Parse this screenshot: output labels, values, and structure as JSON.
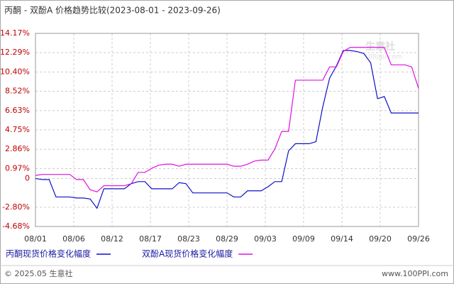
{
  "chart_data": {
    "type": "line",
    "title": "丙酮 - 双酚A 价格趋势比较(2023-08-01 - 2023-09-26)",
    "xticks": [
      "08/01",
      "08/06",
      "08/12",
      "08/17",
      "08/23",
      "08/29",
      "09/03",
      "09/09",
      "09/14",
      "09/20",
      "09/26"
    ],
    "ylim": [
      -4.68,
      14.17
    ],
    "yticks": [
      {
        "value": 14.17,
        "label": "14.17%"
      },
      {
        "value": 12.29,
        "label": "12.29%"
      },
      {
        "value": 10.4,
        "label": "10.40%"
      },
      {
        "value": 8.52,
        "label": "8.52%"
      },
      {
        "value": 6.63,
        "label": "6.63%"
      },
      {
        "value": 4.75,
        "label": "4.75%"
      },
      {
        "value": 2.86,
        "label": "2.86%"
      },
      {
        "value": 0.97,
        "label": "0.97%"
      },
      0,
      {
        "value": -2.8,
        "label": "-2.80%"
      },
      {
        "value": -4.68,
        "label": "-4.68%"
      }
    ],
    "grid": true,
    "series": [
      {
        "name": "丙酮现货价格变化幅度",
        "color": "#1010c8",
        "values": [
          0,
          -0.1,
          -0.1,
          -1.8,
          -1.8,
          -1.8,
          -1.9,
          -1.9,
          -2.0,
          -2.9,
          -1.0,
          -1.0,
          -1.0,
          -1.0,
          -0.5,
          -0.3,
          -0.3,
          -1.0,
          -1.0,
          -1.0,
          -1.0,
          -0.4,
          -0.5,
          -1.4,
          -1.4,
          -1.4,
          -1.4,
          -1.4,
          -1.4,
          -1.8,
          -1.8,
          -1.2,
          -1.2,
          -1.2,
          -0.8,
          -0.3,
          -0.3,
          2.7,
          3.4,
          3.4,
          3.4,
          3.6,
          7.0,
          9.8,
          11.0,
          12.5,
          12.5,
          12.4,
          12.2,
          11.3,
          7.8,
          8.0,
          6.4,
          6.4,
          6.4,
          6.4,
          6.4
        ]
      },
      {
        "name": "双酚A现货价格变化幅度",
        "color": "#e010e0",
        "values": [
          0.3,
          0.4,
          0.4,
          0.4,
          0.4,
          0.4,
          -0.1,
          -0.1,
          -1.1,
          -1.3,
          -0.7,
          -0.7,
          -0.7,
          -0.7,
          -0.5,
          0.6,
          0.6,
          1.0,
          1.3,
          1.4,
          1.4,
          1.2,
          1.4,
          1.4,
          1.4,
          1.4,
          1.4,
          1.4,
          1.4,
          1.2,
          1.2,
          1.4,
          1.7,
          1.8,
          1.8,
          2.9,
          4.6,
          4.6,
          9.6,
          9.6,
          9.6,
          9.6,
          9.6,
          10.9,
          10.9,
          12.4,
          12.8,
          12.8,
          12.8,
          12.8,
          12.8,
          12.8,
          11.1,
          11.1,
          11.1,
          10.9,
          8.8
        ]
      }
    ],
    "watermark": "生意社",
    "watermark_url": "100ppi.com",
    "footer_left": "© 2025.05 生意社",
    "footer_right": "www.100PPI.com"
  }
}
